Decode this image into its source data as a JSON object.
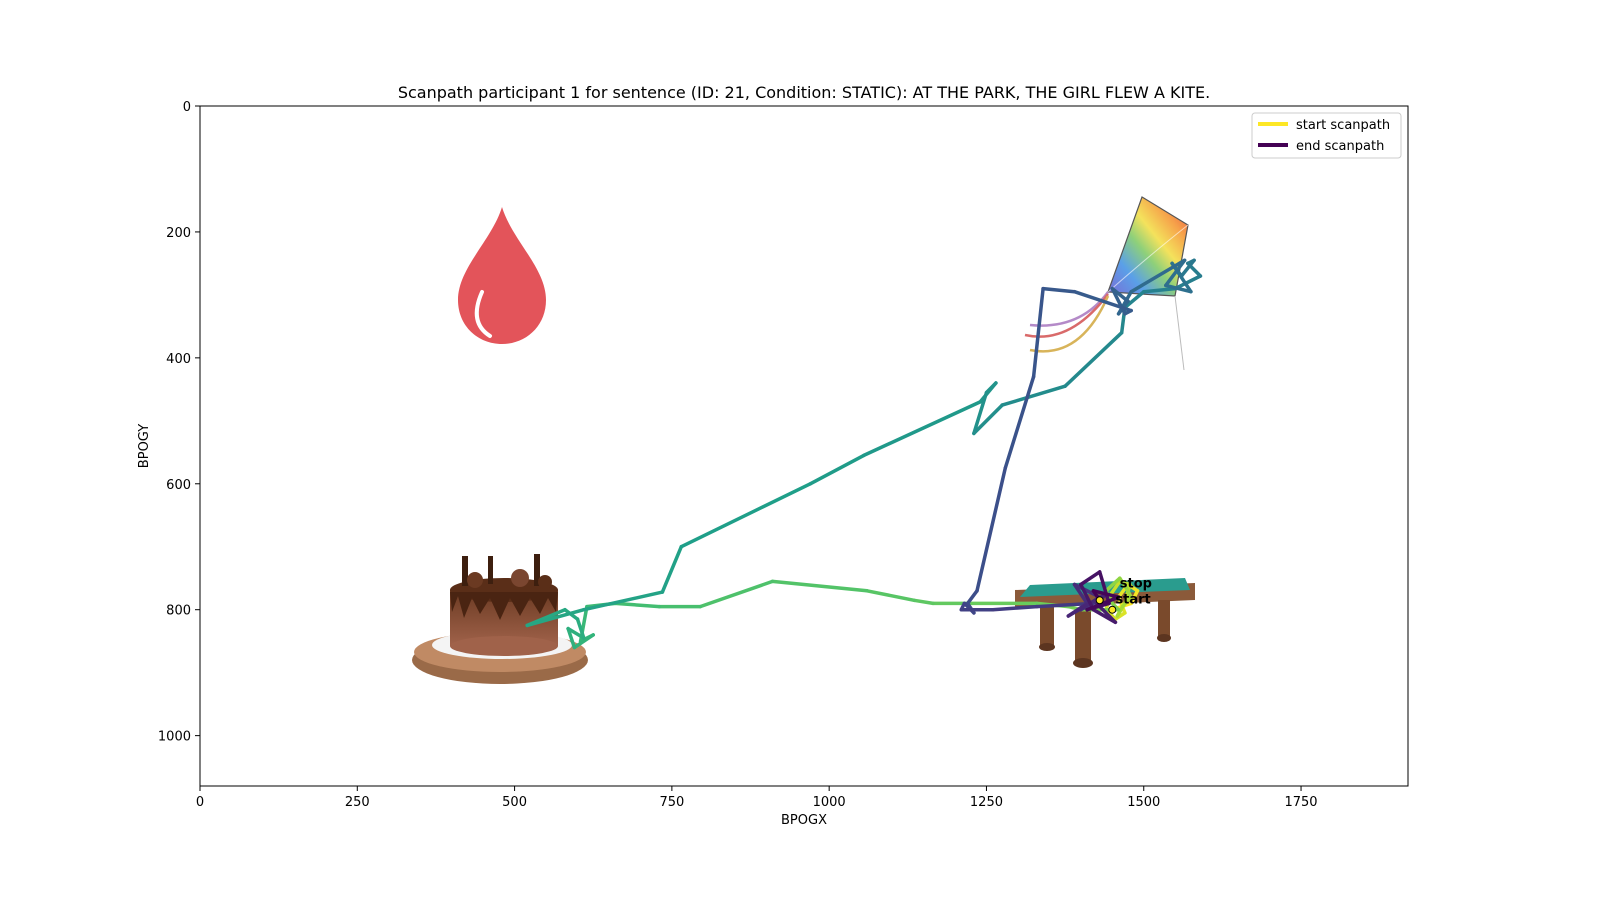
{
  "chart_data": {
    "type": "line",
    "title": "Scanpath participant 1 for sentence (ID: 21, Condition: STATIC):  AT THE PARK, THE GIRL FLEW A KITE.",
    "xlabel": "BPOGX",
    "ylabel": "BPOGY",
    "xlim": [
      0,
      1920
    ],
    "ylim": [
      1080,
      0
    ],
    "y_inverted": true,
    "grid": false,
    "x_ticks": [
      0,
      250,
      500,
      750,
      1000,
      1250,
      1500,
      1750
    ],
    "y_ticks": [
      0,
      200,
      400,
      600,
      800,
      1000
    ],
    "legend": {
      "placement": "top-right",
      "entries": [
        {
          "label": "start scanpath",
          "color": "#fde725"
        },
        {
          "label": "end scanpath",
          "color": "#440154"
        }
      ]
    },
    "colormap": "viridis",
    "annotations": [
      {
        "text": "start",
        "x": 1455,
        "y": 790
      },
      {
        "text": "stop",
        "x": 1462,
        "y": 765
      }
    ],
    "scanpath": {
      "x": [
        1450,
        1480,
        1490,
        1475,
        1460,
        1470,
        1455,
        1440,
        1448,
        1462,
        1478,
        1470,
        1458,
        1466,
        1480,
        1472,
        1462,
        1440,
        1450,
        1460,
        1400,
        1380,
        1330,
        1220,
        1165,
        1135,
        1060,
        910,
        795,
        730,
        660,
        615,
        605,
        625,
        595,
        585,
        610,
        600,
        580,
        520,
        610,
        735,
        765,
        970,
        1055,
        1240,
        1265,
        1250,
        1230,
        1275,
        1375,
        1465,
        1470,
        1500,
        1550,
        1590,
        1570,
        1580,
        1560,
        1545,
        1575,
        1535,
        1565,
        1480,
        1460,
        1475,
        1450,
        1470,
        1480,
        1390,
        1340,
        1325,
        1280,
        1235,
        1220,
        1230,
        1215,
        1210,
        1260,
        1330,
        1420,
        1400,
        1430,
        1390,
        1410,
        1380,
        1440,
        1425,
        1455,
        1420,
        1400,
        1430,
        1445,
        1410,
        1460,
        1420,
        1430
      ],
      "y": [
        800,
        790,
        770,
        760,
        780,
        805,
        815,
        800,
        775,
        755,
        760,
        790,
        810,
        795,
        780,
        765,
        750,
        770,
        790,
        800,
        800,
        795,
        790,
        790,
        790,
        785,
        770,
        755,
        795,
        795,
        790,
        795,
        850,
        840,
        860,
        830,
        845,
        815,
        800,
        825,
        800,
        772,
        700,
        600,
        555,
        470,
        440,
        455,
        520,
        475,
        445,
        360,
        320,
        295,
        290,
        270,
        250,
        245,
        270,
        250,
        295,
        285,
        245,
        295,
        330,
        310,
        290,
        330,
        325,
        295,
        290,
        430,
        575,
        770,
        790,
        805,
        790,
        800,
        800,
        795,
        790,
        800,
        780,
        760,
        790,
        810,
        775,
        790,
        820,
        800,
        760,
        740,
        790,
        800,
        780,
        770,
        785
      ]
    },
    "images": [
      {
        "name": "water-drop-icon",
        "x": 480,
        "y": 270
      },
      {
        "name": "kite-icon",
        "x": 1440,
        "y": 290
      },
      {
        "name": "chocolate-cake-icon",
        "x": 490,
        "y": 830
      },
      {
        "name": "pool-table-icon",
        "x": 1430,
        "y": 800
      }
    ]
  }
}
